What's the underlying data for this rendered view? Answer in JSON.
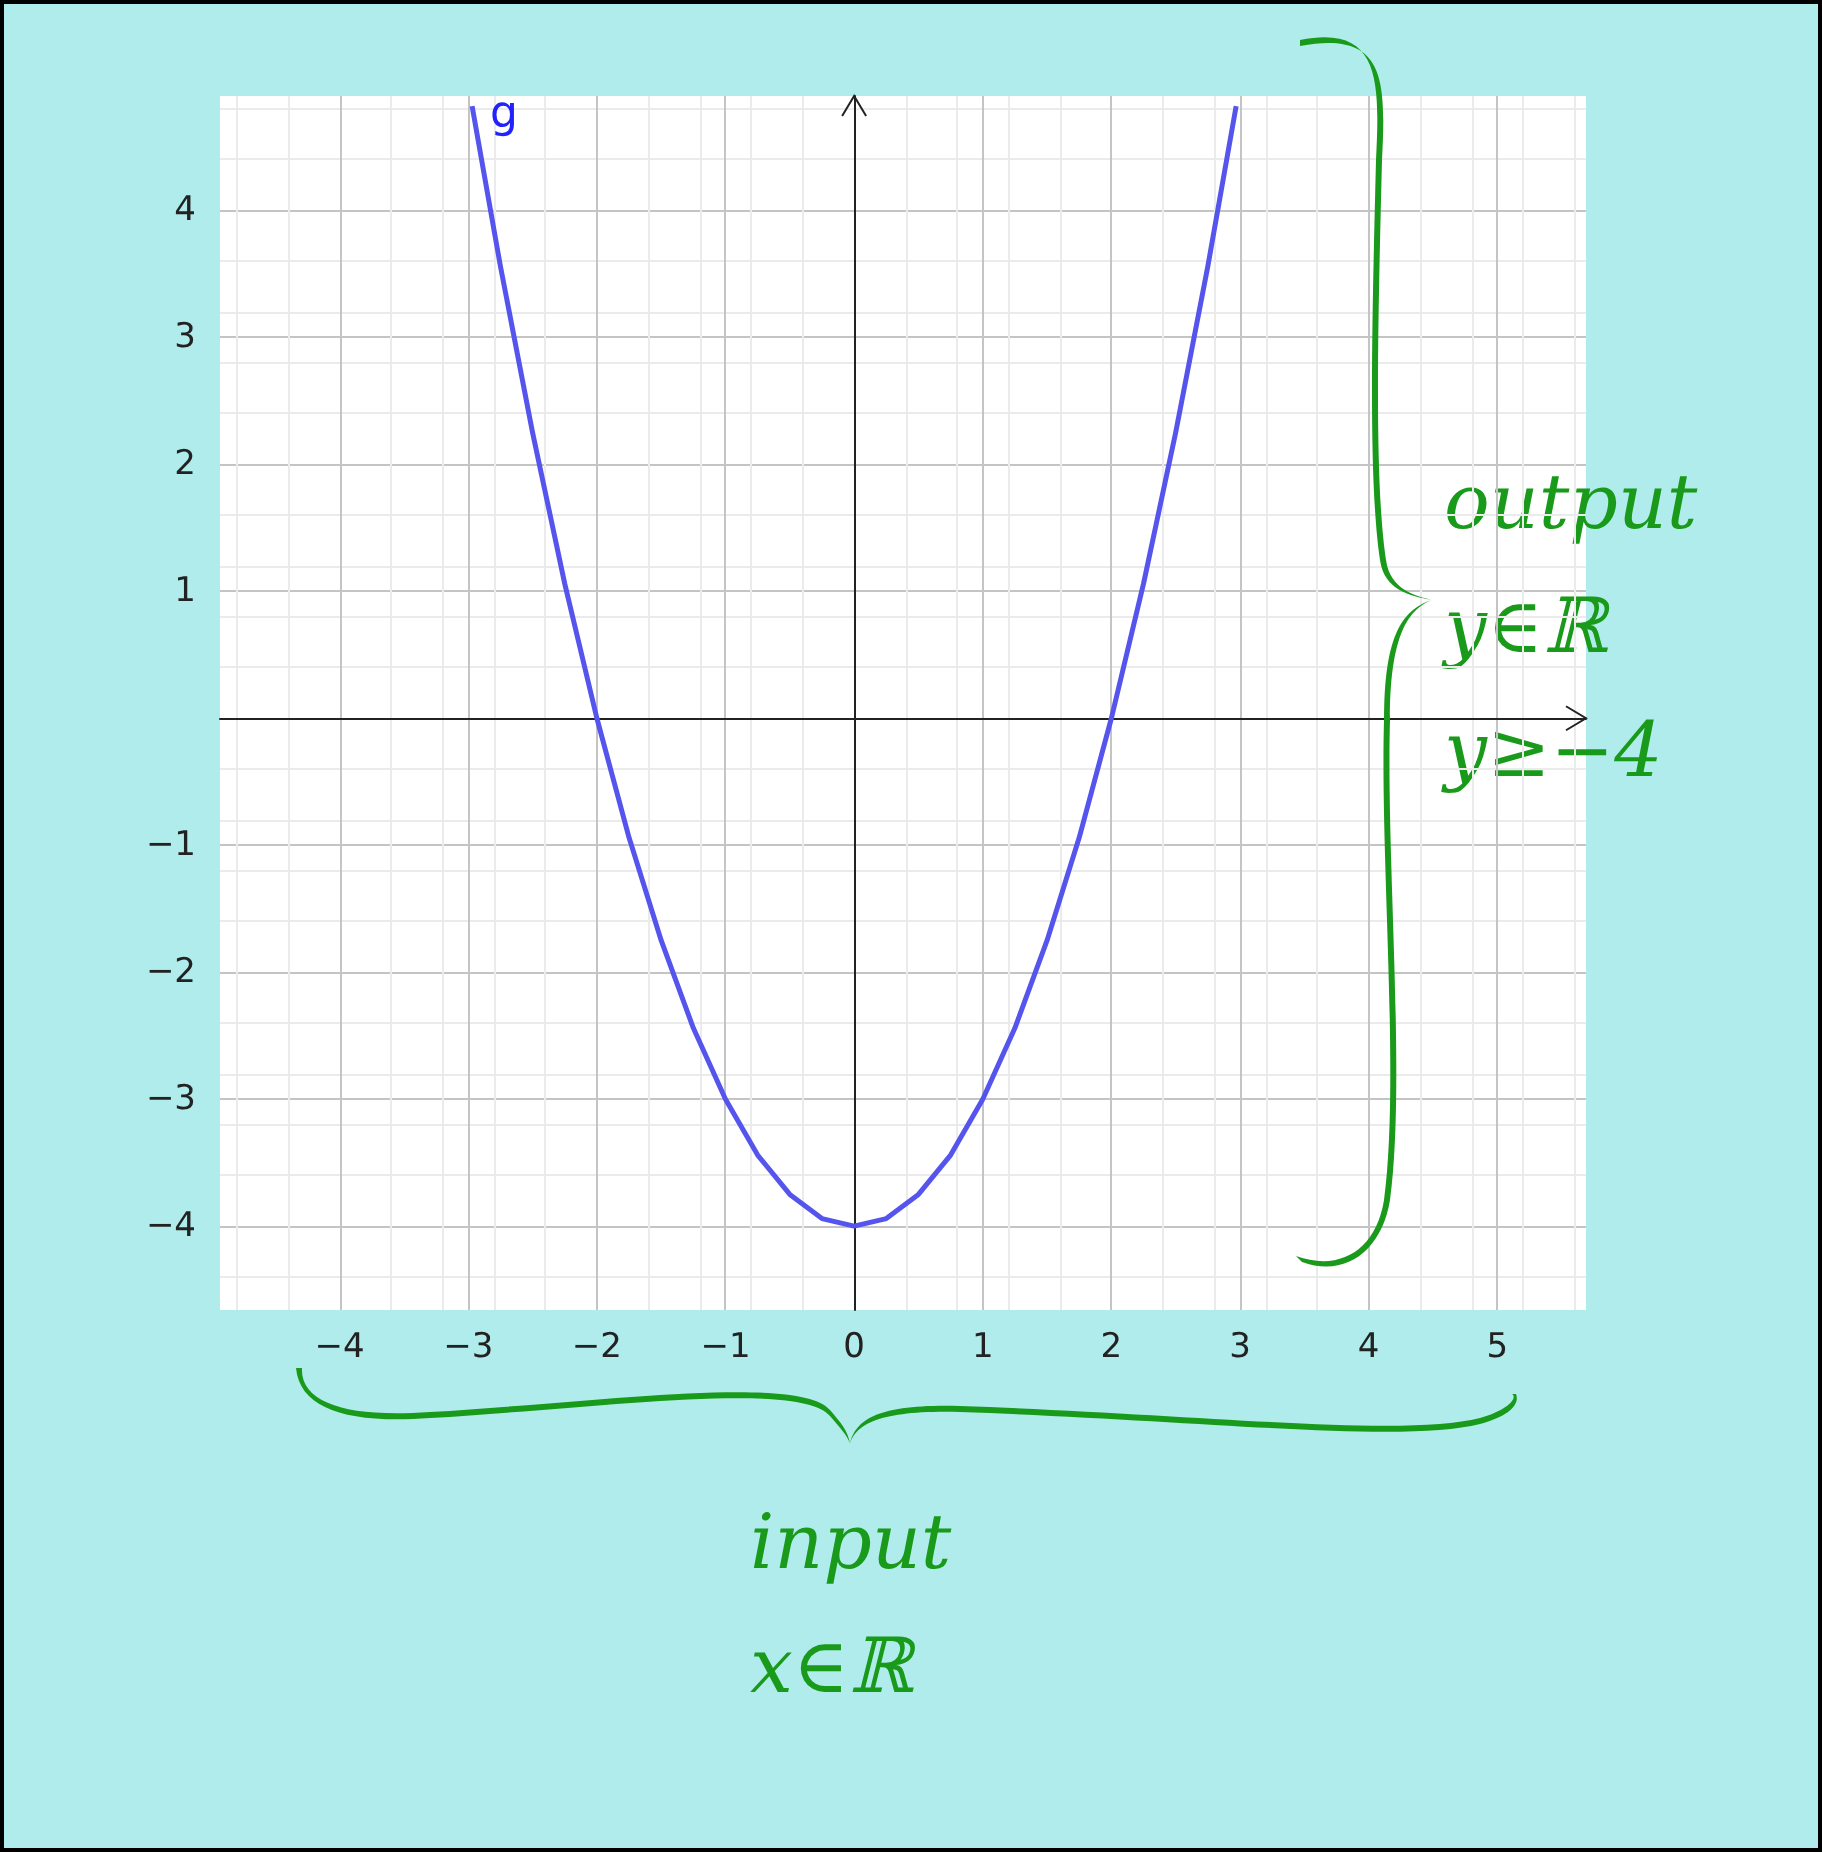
{
  "chart_data": {
    "type": "line",
    "x": [
      -2.97,
      -2.75,
      -2.5,
      -2.25,
      -2,
      -1.75,
      -1.5,
      -1.25,
      -1,
      -0.75,
      -0.5,
      -0.25,
      0,
      0.25,
      0.5,
      0.75,
      1,
      1.25,
      1.5,
      1.75,
      2,
      2.25,
      2.5,
      2.75,
      2.97
    ],
    "series": [
      {
        "name": "g",
        "color": "#5555ee",
        "values": [
          4.82,
          3.56,
          2.25,
          1.06,
          0,
          -0.94,
          -1.75,
          -2.44,
          -3,
          -3.44,
          -3.75,
          -3.94,
          -4,
          -3.94,
          -3.75,
          -3.44,
          -3,
          -2.44,
          -1.75,
          -0.94,
          0,
          1.06,
          2.25,
          3.56,
          4.82
        ]
      }
    ],
    "xlim": [
      -4.93,
      5.69
    ],
    "ylim": [
      -4.66,
      4.9
    ],
    "xticks": [
      -4,
      -3,
      -2,
      -1,
      0,
      1,
      2,
      3,
      4,
      5
    ],
    "yticks": [
      -4,
      -3,
      -2,
      -1,
      {
        "value": 0,
        "label": null
      },
      1,
      2,
      3,
      4
    ],
    "grid": true,
    "marker": "none",
    "line_style": "solid",
    "legend": false,
    "annotations": [
      "output\ny∈ℝ\ny≥−4",
      "input\nx∈ℝ"
    ]
  }
}
